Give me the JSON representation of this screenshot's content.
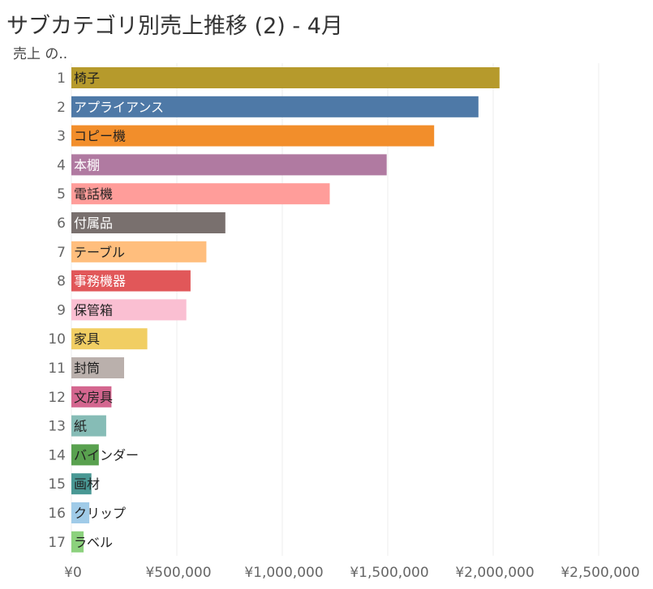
{
  "title": "サブカテゴリ別売上推移 (2) - 4月",
  "chart_data": {
    "type": "bar",
    "orientation": "horizontal",
    "title": "サブカテゴリ別売上推移 (2) - 4月",
    "ylabel": "売上 の..",
    "xlim": [
      0,
      2700000
    ],
    "xticks": [
      0,
      500000,
      1000000,
      1500000,
      2000000,
      2500000
    ],
    "xtick_labels": [
      "¥0",
      "¥500,000",
      "¥1,000,000",
      "¥1,500,000",
      "¥2,000,000",
      "¥2,500,000"
    ],
    "grid": true,
    "ranks": [
      "1",
      "2",
      "3",
      "4",
      "5",
      "6",
      "7",
      "8",
      "9",
      "10",
      "11",
      "12",
      "13",
      "14",
      "15",
      "16",
      "17"
    ],
    "categories": [
      "椅子",
      "アプライアンス",
      "コピー機",
      "本棚",
      "電話機",
      "付属品",
      "テーブル",
      "事務機器",
      "保管箱",
      "家具",
      "封筒",
      "文房具",
      "紙",
      "バインダー",
      "画材",
      "クリップ",
      "ラベル"
    ],
    "values": [
      2030000,
      1930000,
      1720000,
      1495000,
      1225000,
      730000,
      640000,
      565000,
      545000,
      360000,
      250000,
      190000,
      165000,
      130000,
      95000,
      85000,
      58000
    ],
    "colors": [
      "#b69a2c",
      "#4e79a7",
      "#f28e2b",
      "#b07aa1",
      "#ff9d9a",
      "#79706e",
      "#ffbe7d",
      "#e15759",
      "#fabfd2",
      "#f1ce63",
      "#bab0ac",
      "#d4668f",
      "#86bcb6",
      "#59a14f",
      "#499894",
      "#a0cbe8",
      "#8cd17d"
    ],
    "label_colors": [
      "#222222",
      "#ffffff",
      "#222222",
      "#ffffff",
      "#222222",
      "#ffffff",
      "#222222",
      "#ffffff",
      "#222222",
      "#222222",
      "#222222",
      "#222222",
      "#222222",
      "#222222",
      "#222222",
      "#222222",
      "#222222"
    ]
  }
}
